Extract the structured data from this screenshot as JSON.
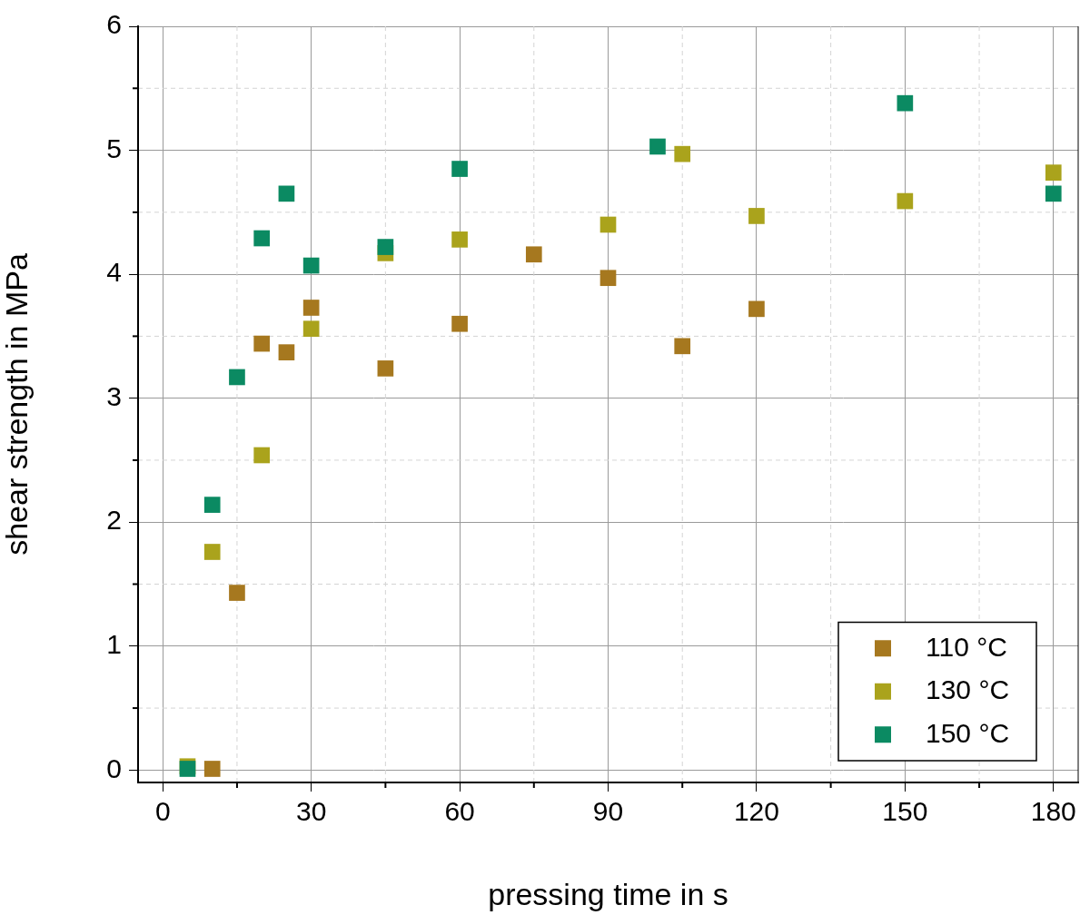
{
  "chart_data": {
    "type": "scatter",
    "x_label": "pressing time in s",
    "y_label": "shear strength in MPa",
    "xlim": [
      -5,
      185
    ],
    "xticks": [
      0,
      30,
      60,
      90,
      120,
      150,
      180
    ],
    "ylim": [
      -0.1,
      6
    ],
    "yticks": [
      0,
      1,
      2,
      3,
      4,
      5,
      6
    ],
    "grid": true,
    "legend": "lower right",
    "marker": "square",
    "series": [
      {
        "name": "110 °C",
        "color": "#a6781f",
        "x": [
          10,
          15,
          20,
          25,
          30,
          45,
          60,
          75,
          90,
          105,
          120
        ],
        "values": [
          0.01,
          1.43,
          3.44,
          3.37,
          3.73,
          3.24,
          3.6,
          4.16,
          3.97,
          3.42,
          3.72
        ]
      },
      {
        "name": "130 °C",
        "color": "#aaa31c",
        "x": [
          5,
          10,
          20,
          30,
          45,
          60,
          90,
          105,
          120,
          150,
          180
        ],
        "values": [
          0.03,
          1.76,
          2.54,
          3.56,
          4.17,
          4.28,
          4.4,
          4.97,
          4.47,
          4.59,
          4.82
        ]
      },
      {
        "name": "150 °C",
        "color": "#0b8a62",
        "x": [
          5,
          10,
          15,
          20,
          25,
          30,
          45,
          60,
          100,
          150,
          180
        ],
        "values": [
          0.01,
          2.14,
          3.17,
          4.29,
          4.65,
          4.07,
          4.22,
          4.85,
          5.03,
          5.38,
          4.65
        ]
      }
    ]
  }
}
